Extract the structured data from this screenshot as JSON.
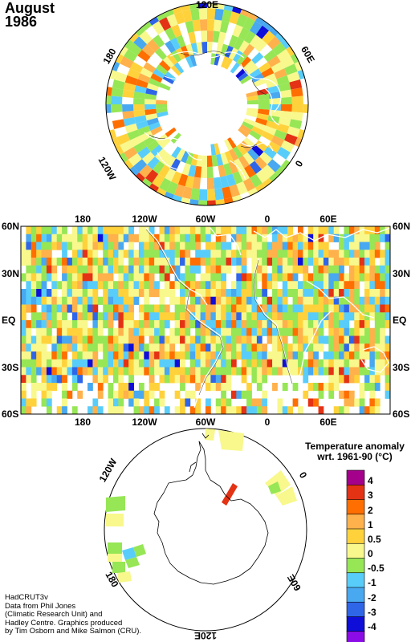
{
  "title": {
    "line1": "August",
    "line2": "1986"
  },
  "north_map": {
    "top_label": "120E",
    "upper_right_label": "60E",
    "right_label": "0",
    "lower_left_label": "120W",
    "upper_left_label": "180"
  },
  "world_map": {
    "top_lon_labels": [
      "180",
      "120W",
      "60W",
      "0",
      "60E"
    ],
    "bottom_lon_labels": [
      "180",
      "120W",
      "60W",
      "0",
      "60E"
    ],
    "lat_labels": [
      "60N",
      "30N",
      "EQ",
      "30S",
      "60S"
    ]
  },
  "south_map": {
    "upper_left_label": "120W",
    "right_label": "0",
    "left_label": "180",
    "lower_right_label": "60E",
    "bottom_label": "120E"
  },
  "legend": {
    "title_line1": "Temperature anomaly",
    "title_line2": "wrt. 1961-90  (°C)",
    "labels": [
      "4",
      "3",
      "2",
      "1",
      "0.5",
      "0",
      "-0.5",
      "-1",
      "-2",
      "-3",
      "-4"
    ],
    "colors": [
      "#a5008c",
      "#e43215",
      "#ff6e00",
      "#ffb14b",
      "#ffd23c",
      "#f8f88c",
      "#96e656",
      "#59cdfa",
      "#48a8f0",
      "#2f66e8",
      "#0e0ed8",
      "#8c0ce8"
    ]
  },
  "credits": [
    "HadCRUT3v",
    "Data from Phil Jones",
    "(Climatic Research Unit) and",
    "Hadley Centre.  Graphics produced",
    "by Tim Osborn and Mike Salmon (CRU)."
  ]
}
